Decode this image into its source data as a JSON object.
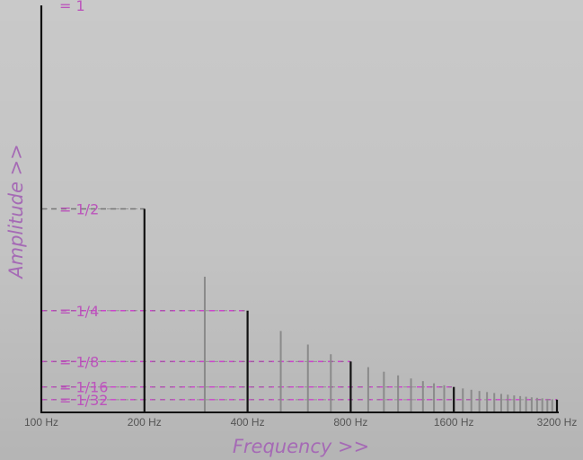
{
  "chart_data": {
    "type": "bar",
    "title": "",
    "xlabel": "Frequency >>",
    "ylabel": "Amplitude >>",
    "x_scale": "log2",
    "xlim": [
      100,
      3200
    ],
    "ylim": [
      0,
      1
    ],
    "x_ticks": [
      {
        "value": 100,
        "label": "100 Hz"
      },
      {
        "value": 200,
        "label": "200 Hz"
      },
      {
        "value": 400,
        "label": "400 Hz"
      },
      {
        "value": 800,
        "label": "800 Hz"
      },
      {
        "value": 1600,
        "label": "1600 Hz"
      },
      {
        "value": 3200,
        "label": "3200 Hz"
      }
    ],
    "amplitude_labels": [
      {
        "value": 1,
        "label": "= 1"
      },
      {
        "value": 0.5,
        "label": "= 1/2"
      },
      {
        "value": 0.25,
        "label": "= 1/4"
      },
      {
        "value": 0.125,
        "label": "= 1/8"
      },
      {
        "value": 0.0625,
        "label": "= 1/16"
      },
      {
        "value": 0.03125,
        "label": "= 1/32"
      }
    ],
    "harmonics": {
      "fundamental_hz": 100,
      "count": 32,
      "amplitude_rule": "1/n",
      "octave_harmonics": [
        1,
        2,
        4,
        8,
        16,
        32
      ]
    },
    "colors": {
      "octave_line": "#111111",
      "harmonic_line": "#8a8a8a",
      "guide_pink": "#cc44cc",
      "guide_gray": "#777777",
      "label_pink": "#bb55bb",
      "axis_title": "#a56ab5",
      "tick_text": "#555555"
    }
  }
}
